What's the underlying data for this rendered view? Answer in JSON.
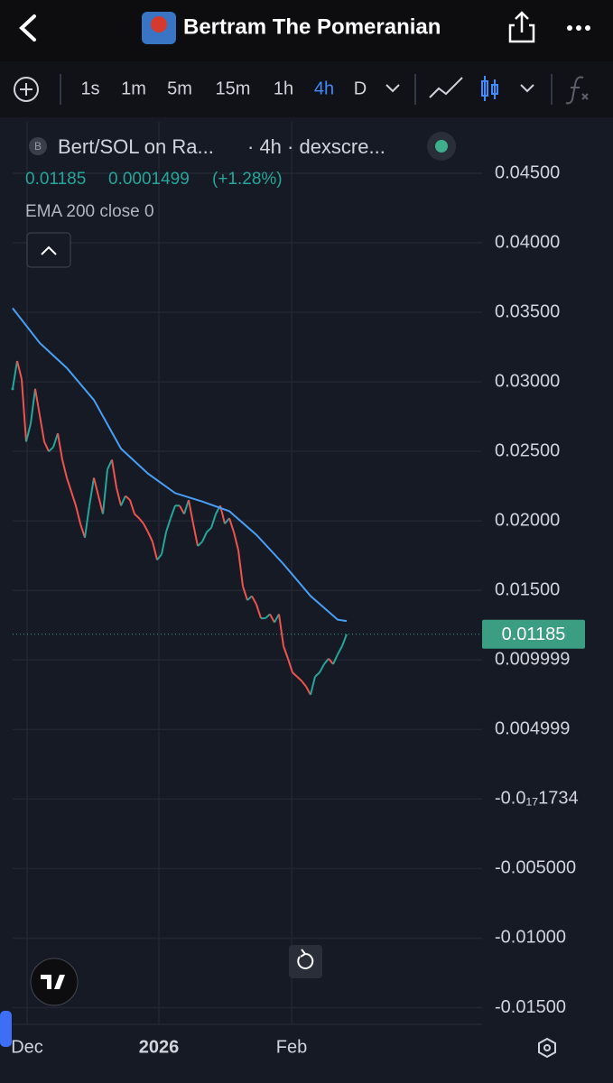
{
  "header": {
    "title": "Bertram The Pomeranian"
  },
  "toolbar": {
    "intervals": [
      "1s",
      "1m",
      "5m",
      "15m",
      "1h",
      "4h",
      "D"
    ],
    "active_interval": 5
  },
  "legend": {
    "icon": "B",
    "symbol": "Bert/SOL on Ra...",
    "source": "· 4h · dexscre...",
    "change": "0.0001499",
    "change_percent": "(+1.28%)",
    "indicator": "EMA 200 close 0"
  },
  "chart_data": {
    "type": "line",
    "xlim": [
      0,
      104
    ],
    "xticks": [
      {
        "value": 3.2,
        "label": "Dec"
      },
      {
        "value": 32.4,
        "label": "2026"
      },
      {
        "value": 61.8,
        "label": "Feb"
      }
    ],
    "ylim": [
      -0.0162,
      0.0487
    ],
    "yticks": [
      {
        "value": 0.045,
        "label": "0.04500"
      },
      {
        "value": 0.04,
        "label": "0.04000"
      },
      {
        "value": 0.035,
        "label": "0.03500"
      },
      {
        "value": 0.03,
        "label": "0.03000"
      },
      {
        "value": 0.025,
        "label": "0.02500"
      },
      {
        "value": 0.02,
        "label": "0.02000"
      },
      {
        "value": 0.015,
        "label": "0.01500"
      },
      {
        "value": 0.01,
        "label": "0.009999"
      },
      {
        "value": 0.005,
        "label": "0.004999"
      },
      {
        "value": -1.734e-19,
        "label": "-0.0₁₇1734"
      },
      {
        "value": -0.005,
        "label": "-0.005000"
      },
      {
        "value": -0.01,
        "label": "-0.01000"
      },
      {
        "value": -0.015,
        "label": "-0.01500"
      }
    ],
    "grid": true,
    "series": [
      {
        "up_color": "#26a69a",
        "down_color": "#ef5350",
        "values": [
          0.0295,
          0.0315,
          0.0302,
          0.0257,
          0.027,
          0.0295,
          0.0276,
          0.0257,
          0.025,
          0.0253,
          0.0263,
          0.0244,
          0.0231,
          0.0221,
          0.0211,
          0.0198,
          0.0188,
          0.0211,
          0.0231,
          0.0218,
          0.0205,
          0.0237,
          0.0244,
          0.0224,
          0.0211,
          0.0218,
          0.0215,
          0.0205,
          0.0202,
          0.0198,
          0.0192,
          0.0185,
          0.0172,
          0.0176,
          0.0192,
          0.0202,
          0.0211,
          0.0211,
          0.0205,
          0.0215,
          0.0198,
          0.0182,
          0.0185,
          0.0192,
          0.0195,
          0.0205,
          0.0211,
          0.0198,
          0.0202,
          0.0192,
          0.0179,
          0.0153,
          0.0143,
          0.0146,
          0.014,
          0.013,
          0.013,
          0.0133,
          0.0127,
          0.0133,
          0.011,
          0.0101,
          0.0091,
          0.0088,
          0.0085,
          0.0081,
          0.0075,
          0.0088,
          0.0091,
          0.0097,
          0.0101,
          0.0097,
          0.0104,
          0.011,
          0.01185
        ],
        "last_color": "#3b9d82"
      },
      {
        "color": "#4a9ff5",
        "x": [
          0,
          6,
          12,
          18,
          24,
          30,
          36,
          42,
          48,
          54,
          60,
          66,
          72,
          74
        ],
        "values": [
          0.0353,
          0.0328,
          0.031,
          0.0287,
          0.0252,
          0.0234,
          0.022,
          0.0214,
          0.0207,
          0.019,
          0.0169,
          0.0146,
          0.0129,
          0.0128
        ]
      }
    ]
  }
}
